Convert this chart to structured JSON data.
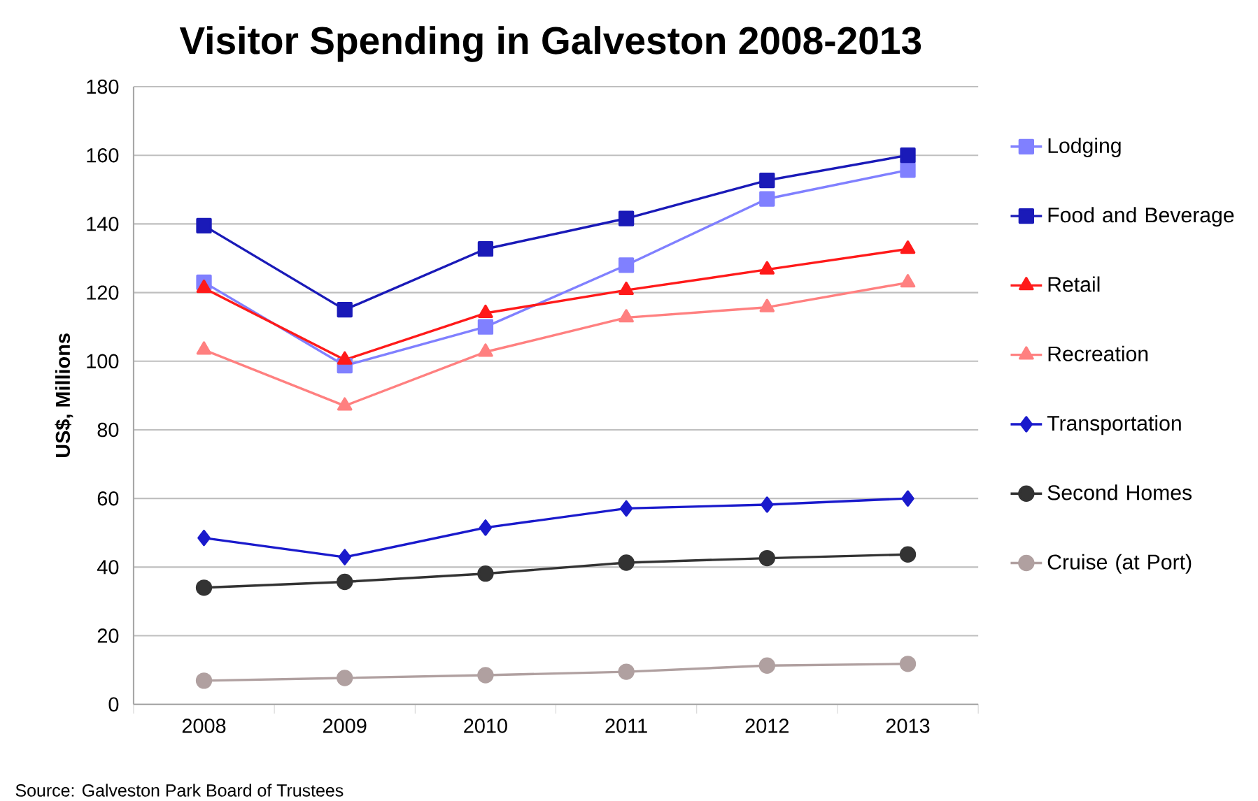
{
  "chart_data": {
    "type": "line",
    "title": "Visitor Spending in Galveston 2008-2013",
    "ylabel": "US$, Millions",
    "categories": [
      "2008",
      "2009",
      "2010",
      "2011",
      "2012",
      "2013"
    ],
    "series": [
      {
        "name": "Lodging",
        "color": "#8080ff",
        "marker": "square",
        "values": [
          123,
          98.7,
          110,
          128,
          147.3,
          155.7
        ]
      },
      {
        "name": "Food and Beverage",
        "color": "#1a1ab8",
        "marker": "square",
        "values": [
          139.5,
          115,
          132.7,
          141.6,
          152.7,
          160
        ]
      },
      {
        "name": "Retail",
        "color": "#ff1a1a",
        "marker": "triangle",
        "values": [
          121.3,
          100.4,
          114,
          120.7,
          126.7,
          132.7
        ]
      },
      {
        "name": "Recreation",
        "color": "#ff8080",
        "marker": "triangle",
        "values": [
          103.3,
          87,
          102.7,
          112.7,
          115.7,
          122.9
        ]
      },
      {
        "name": "Transportation",
        "color": "#1a1acc",
        "marker": "diamond",
        "values": [
          48.5,
          42.9,
          51.5,
          57.1,
          58.2,
          60
        ]
      },
      {
        "name": "Second Homes",
        "color": "#333333",
        "marker": "circle",
        "values": [
          34,
          35.7,
          38.1,
          41.3,
          42.6,
          43.7
        ]
      },
      {
        "name": "Cruise (at Port)",
        "color": "#b0a0a0",
        "marker": "circle",
        "values": [
          6.9,
          7.7,
          8.5,
          9.5,
          11.3,
          11.8
        ]
      }
    ],
    "ylim": [
      0,
      180
    ],
    "yticks": [
      0,
      20,
      40,
      60,
      80,
      100,
      120,
      140,
      160,
      180
    ],
    "grid": "y",
    "legend": "right",
    "annotations": [
      "Source: Galveston Park Board of Trustees"
    ]
  }
}
